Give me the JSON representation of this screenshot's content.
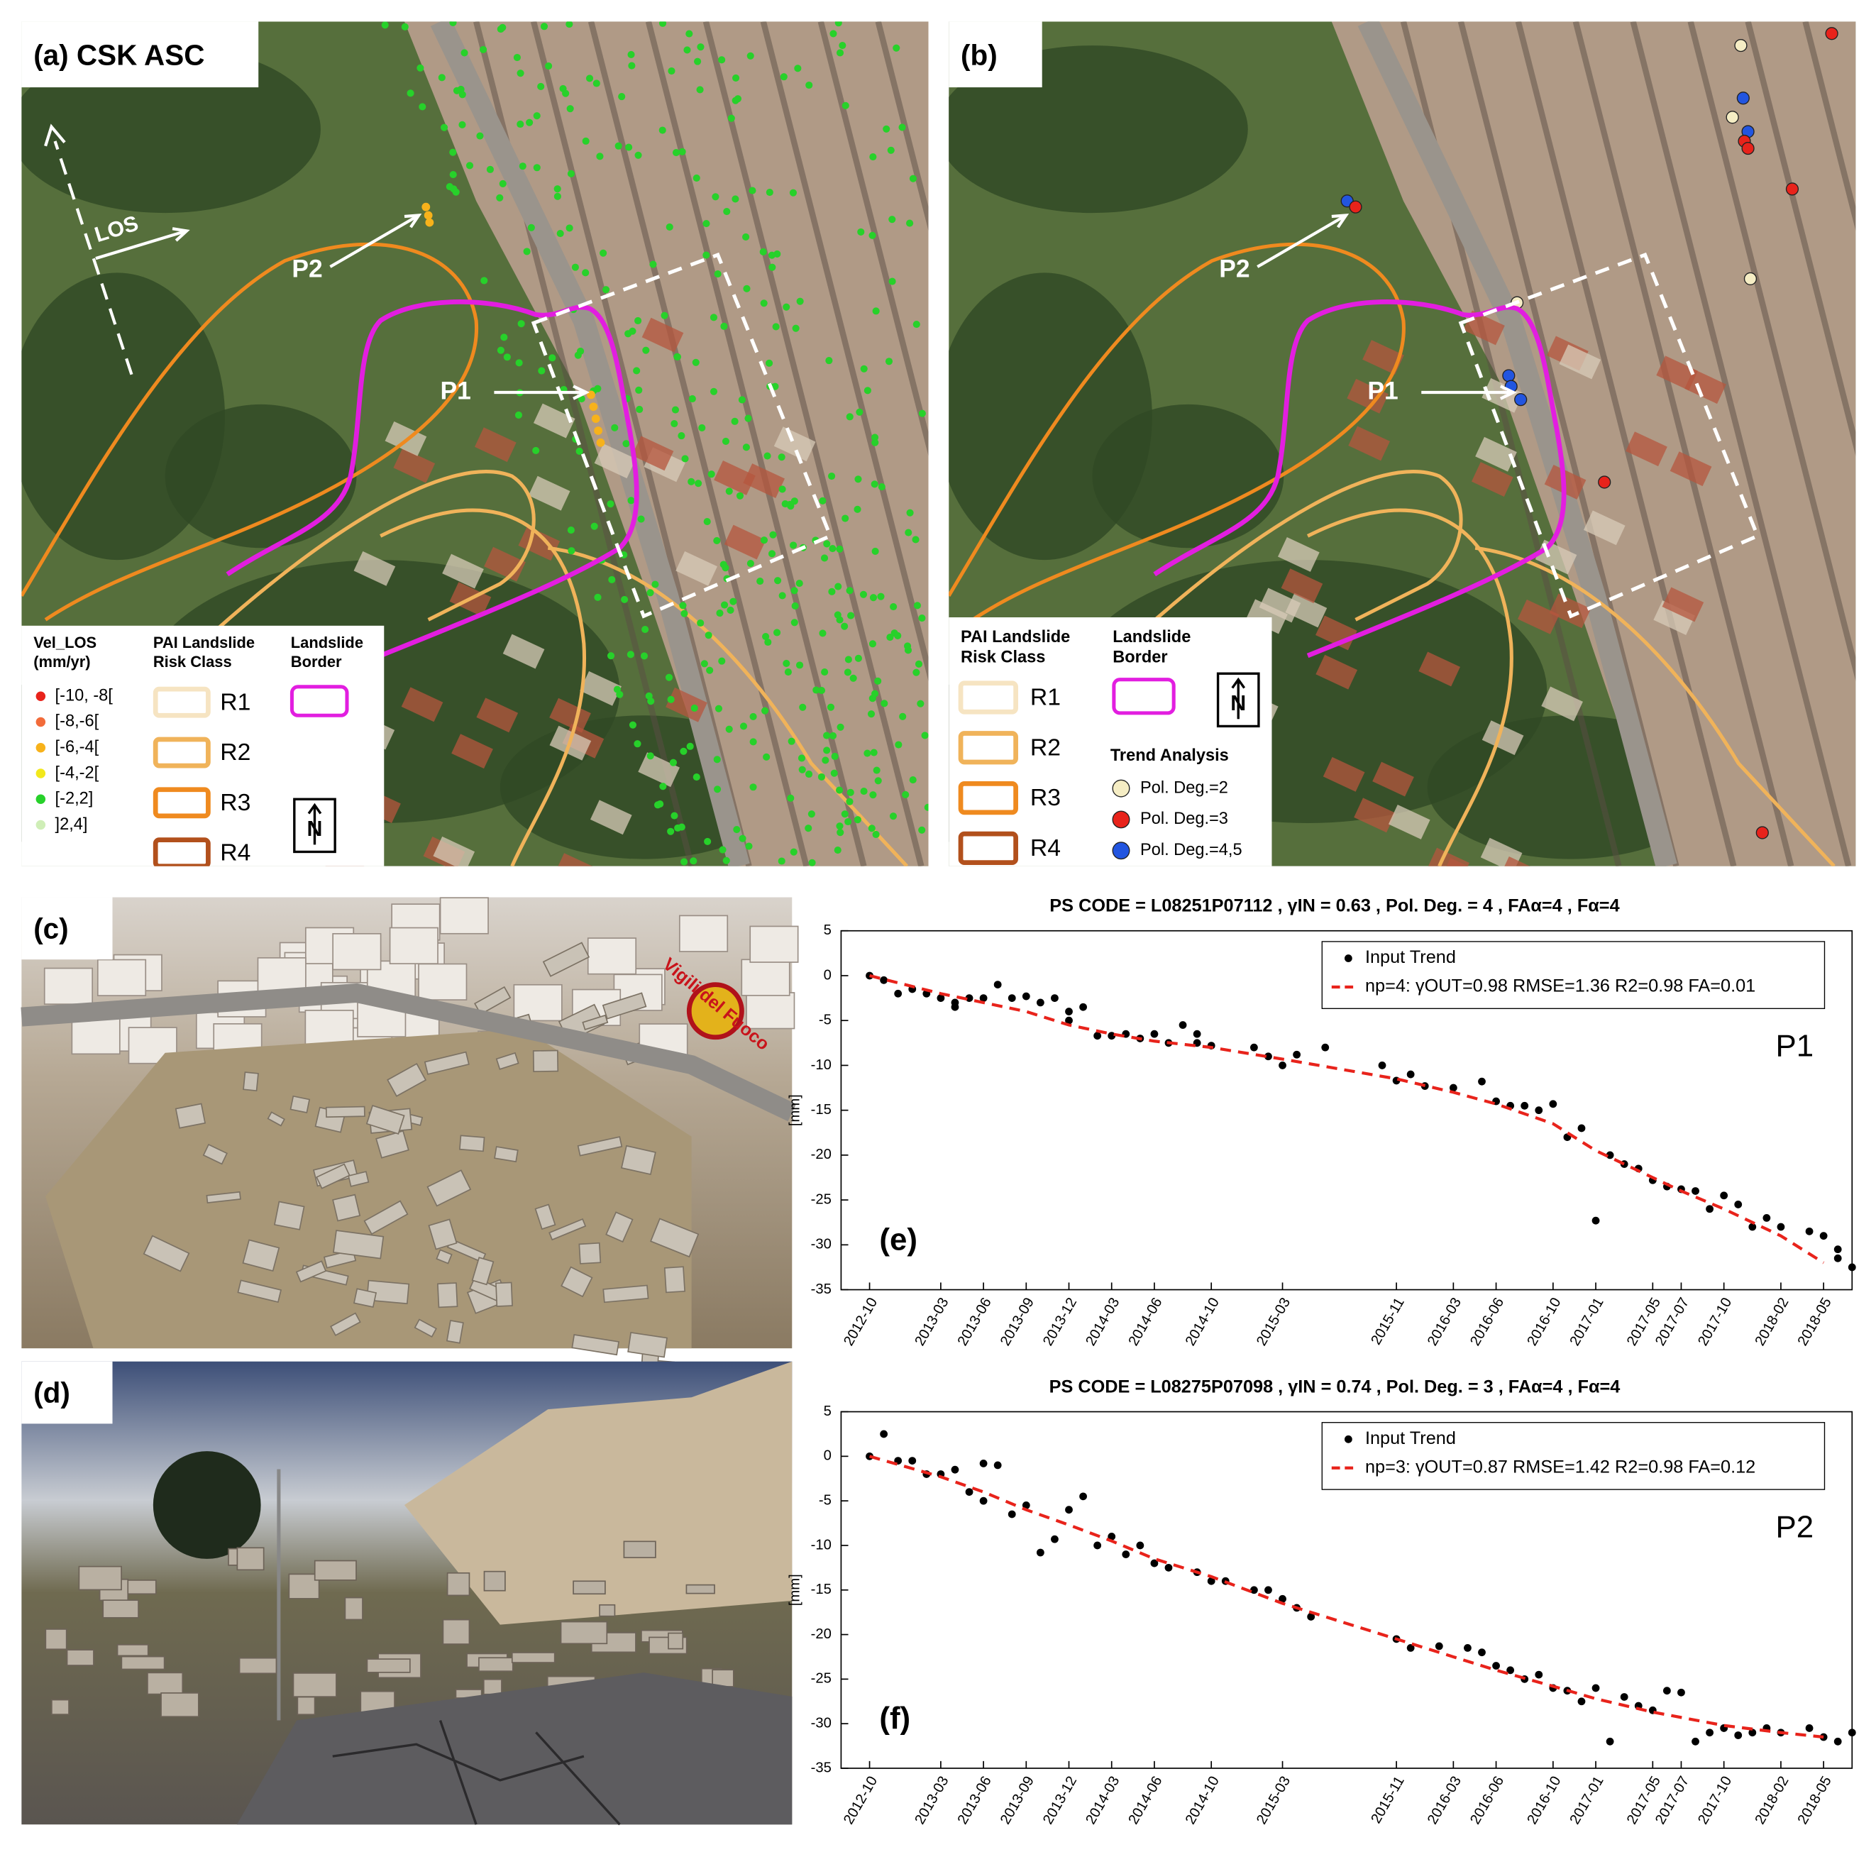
{
  "panel_a": {
    "label": "(a) CSK ASC",
    "los_label": "LOS",
    "points": [
      "P1",
      "P2"
    ],
    "legend": {
      "velocity_title": [
        "Vel_LOS",
        "(mm/yr)"
      ],
      "velocity_classes": [
        {
          "label": "[-10, -8[",
          "color": "#e8231b"
        },
        {
          "label": "[-8,-6[",
          "color": "#f26b3a"
        },
        {
          "label": "[-6,-4[",
          "color": "#f7b21b"
        },
        {
          "label": "[-4,-2[",
          "color": "#f2e81c"
        },
        {
          "label": "[-2,2]",
          "color": "#27d12a"
        },
        {
          "label": "]2,4]",
          "color": "#cfeeb7"
        }
      ],
      "risk_title": [
        "PAI Landslide",
        "Risk Class"
      ],
      "risk_classes": [
        {
          "label": "R1",
          "color": "#f6e4c2"
        },
        {
          "label": "R2",
          "color": "#f0b35a"
        },
        {
          "label": "R3",
          "color": "#ef8a1f"
        },
        {
          "label": "R4",
          "color": "#b2501c"
        }
      ],
      "border_title": [
        "Landslide",
        "Border"
      ],
      "border_color": "#e21ee0",
      "north": "N"
    }
  },
  "panel_b": {
    "label": "(b)",
    "points": [
      "P1",
      "P2"
    ],
    "legend": {
      "risk_title": [
        "PAI Landslide",
        "Risk Class"
      ],
      "risk_classes": [
        {
          "label": "R1",
          "color": "#f6e4c2"
        },
        {
          "label": "R2",
          "color": "#f0b35a"
        },
        {
          "label": "R3",
          "color": "#ef8a1f"
        },
        {
          "label": "R4",
          "color": "#b2501c"
        }
      ],
      "border_title": [
        "Landslide",
        "Border"
      ],
      "border_color": "#e21ee0",
      "north": "N",
      "trend_title": "Trend Analysis",
      "trend_classes": [
        {
          "label": "Pol. Deg.=2",
          "color": "#f5edc4"
        },
        {
          "label": "Pol. Deg.=3",
          "color": "#e8231b"
        },
        {
          "label": "Pol. Deg.=4,5",
          "color": "#2255e0"
        }
      ]
    }
  },
  "panel_c": {
    "label": "(c)",
    "watermark": "Vigili del Fuoco"
  },
  "panel_d": {
    "label": "(d)"
  },
  "chart_data": [
    {
      "type": "scatter",
      "panel_label": "(e)",
      "annotation": "P1",
      "title": "PS CODE = L08251P07112 ,  γIN = 0.63 , Pol. Deg. = 4 , FAα=4 , Fα=4",
      "ylabel": "[mm]",
      "legend": "upper right",
      "xlim": [
        "2012-08",
        "2018-07"
      ],
      "ylim": [
        -35,
        5
      ],
      "xticks": [
        "2012-10",
        "2013-03",
        "2013-06",
        "2013-09",
        "2013-12",
        "2014-03",
        "2014-06",
        "2014-10",
        "2015-03",
        "2015-11",
        "2016-03",
        "2016-06",
        "2016-10",
        "2017-01",
        "2017-05",
        "2017-07",
        "2017-10",
        "2018-02",
        "2018-05"
      ],
      "yticks": [
        5,
        0,
        -5,
        -10,
        -15,
        -20,
        -25,
        -30,
        -35
      ],
      "series": [
        {
          "name": "Input Trend",
          "color": "#000000",
          "style": "dots",
          "x": [
            "2012-10",
            "2012-11",
            "2012-12",
            "2013-01",
            "2013-02",
            "2013-03",
            "2013-04",
            "2013-04",
            "2013-05",
            "2013-06",
            "2013-07",
            "2013-08",
            "2013-09",
            "2013-10",
            "2013-11",
            "2013-12",
            "2013-12",
            "2014-01",
            "2014-02",
            "2014-03",
            "2014-04",
            "2014-05",
            "2014-06",
            "2014-07",
            "2014-08",
            "2014-09",
            "2014-09",
            "2014-10",
            "2015-01",
            "2015-02",
            "2015-03",
            "2015-04",
            "2015-06",
            "2015-10",
            "2015-11",
            "2015-12",
            "2016-01",
            "2016-03",
            "2016-05",
            "2016-06",
            "2016-07",
            "2016-08",
            "2016-09",
            "2016-10",
            "2016-11",
            "2016-12",
            "2017-01",
            "2017-02",
            "2017-03",
            "2017-04",
            "2017-05",
            "2017-06",
            "2017-07",
            "2017-08",
            "2017-09",
            "2017-10",
            "2017-11",
            "2017-12",
            "2018-01",
            "2018-02",
            "2018-04",
            "2018-05",
            "2018-06",
            "2018-06",
            "2018-07"
          ],
          "values": [
            0,
            -0.5,
            -2,
            -1.5,
            -2,
            -2.5,
            -3.5,
            -3,
            -2.5,
            -2.5,
            -1,
            -2.5,
            -2.3,
            -3,
            -2.5,
            -5,
            -4,
            -3.5,
            -6.7,
            -6.7,
            -6.5,
            -7,
            -6.5,
            -7.5,
            -5.5,
            -7.5,
            -6.5,
            -7.8,
            -8,
            -9,
            -10,
            -8.8,
            -8,
            -10,
            -11.7,
            -11,
            -12.3,
            -12.5,
            -11.8,
            -14,
            -14.5,
            -14.5,
            -15,
            -14.3,
            -18,
            -17,
            -27.3,
            -20,
            -21,
            -21.5,
            -22.8,
            -23.5,
            -23.8,
            -24,
            -26,
            -24.5,
            -25.5,
            -28,
            -27,
            -28,
            -28.5,
            -29,
            -30.5,
            -31.5,
            -32.5
          ]
        },
        {
          "name": "np=4: γOUT=0.98 RMSE=1.36 R2=0.98 FA=0.01",
          "color": "#e8231b",
          "style": "dashed",
          "x": [
            "2012-10",
            "2013-03",
            "2013-06",
            "2013-09",
            "2013-12",
            "2014-03",
            "2014-06",
            "2014-10",
            "2015-03",
            "2015-11",
            "2016-03",
            "2016-06",
            "2016-10",
            "2017-01",
            "2017-05",
            "2017-07",
            "2017-10",
            "2018-02",
            "2018-05"
          ],
          "values": [
            0,
            -2,
            -3,
            -4,
            -5.5,
            -6.5,
            -7.3,
            -8,
            -9.3,
            -11.5,
            -13,
            -14.3,
            -16.5,
            -19.5,
            -22.5,
            -24,
            -26,
            -29,
            -32
          ]
        }
      ]
    },
    {
      "type": "scatter",
      "panel_label": "(f)",
      "annotation": "P2",
      "title": "PS CODE = L08275P07098 ,  γIN = 0.74 , Pol. Deg. = 3 , FAα=4 , Fα=4",
      "ylabel": "[mm]",
      "legend": "upper right",
      "xlim": [
        "2012-08",
        "2018-07"
      ],
      "ylim": [
        -35,
        5
      ],
      "xticks": [
        "2012-10",
        "2013-03",
        "2013-06",
        "2013-09",
        "2013-12",
        "2014-03",
        "2014-06",
        "2014-10",
        "2015-03",
        "2015-11",
        "2016-03",
        "2016-06",
        "2016-10",
        "2017-01",
        "2017-05",
        "2017-07",
        "2017-10",
        "2018-02",
        "2018-05"
      ],
      "yticks": [
        5,
        0,
        -5,
        -10,
        -15,
        -20,
        -25,
        -30,
        -35
      ],
      "series": [
        {
          "name": "Input Trend",
          "color": "#000000",
          "style": "dots",
          "x": [
            "2012-10",
            "2012-11",
            "2012-12",
            "2013-01",
            "2013-02",
            "2013-03",
            "2013-04",
            "2013-05",
            "2013-06",
            "2013-06",
            "2013-07",
            "2013-08",
            "2013-09",
            "2013-10",
            "2013-11",
            "2013-12",
            "2014-01",
            "2014-02",
            "2014-03",
            "2014-04",
            "2014-05",
            "2014-06",
            "2014-07",
            "2014-09",
            "2014-10",
            "2014-11",
            "2015-01",
            "2015-02",
            "2015-03",
            "2015-04",
            "2015-05",
            "2015-11",
            "2015-12",
            "2016-02",
            "2016-04",
            "2016-05",
            "2016-06",
            "2016-07",
            "2016-08",
            "2016-09",
            "2016-10",
            "2016-11",
            "2016-12",
            "2017-01",
            "2017-02",
            "2017-03",
            "2017-04",
            "2017-05",
            "2017-06",
            "2017-07",
            "2017-08",
            "2017-09",
            "2017-10",
            "2017-11",
            "2017-12",
            "2018-01",
            "2018-02",
            "2018-04",
            "2018-05",
            "2018-06",
            "2018-07"
          ],
          "values": [
            0,
            2.5,
            -0.5,
            -0.5,
            -2,
            -2,
            -1.5,
            -4,
            -5,
            -0.8,
            -1,
            -6.5,
            -5.5,
            -10.8,
            -9.3,
            -6,
            -4.5,
            -10,
            -9,
            -11,
            -10,
            -12,
            -12.5,
            -13,
            -14,
            -14,
            -15,
            -15,
            -16,
            -17,
            -18,
            -20.5,
            -21.5,
            -21.3,
            -21.5,
            -22,
            -23.5,
            -24,
            -25,
            -24.5,
            -26,
            -26.3,
            -27.5,
            -26,
            -32,
            -27,
            -28,
            -28.5,
            -26.3,
            -26.5,
            -32,
            -31,
            -30.5,
            -31.3,
            -31,
            -30.5,
            -31,
            -30.5,
            -31.5,
            -32,
            -31
          ]
        },
        {
          "name": "np=3: γOUT=0.87 RMSE=1.42 R2=0.98 FA=0.12",
          "color": "#e8231b",
          "style": "dashed",
          "x": [
            "2012-10",
            "2013-03",
            "2013-06",
            "2013-09",
            "2013-12",
            "2014-03",
            "2014-06",
            "2014-10",
            "2015-03",
            "2015-11",
            "2016-03",
            "2016-06",
            "2016-10",
            "2017-01",
            "2017-05",
            "2017-07",
            "2017-10",
            "2018-02",
            "2018-05"
          ],
          "values": [
            0,
            -2.3,
            -4,
            -6,
            -7.7,
            -9.5,
            -11.5,
            -13.5,
            -16.5,
            -20.5,
            -22.5,
            -24,
            -25.8,
            -27.2,
            -28.7,
            -29.3,
            -30.2,
            -31,
            -31.5
          ]
        }
      ]
    }
  ]
}
